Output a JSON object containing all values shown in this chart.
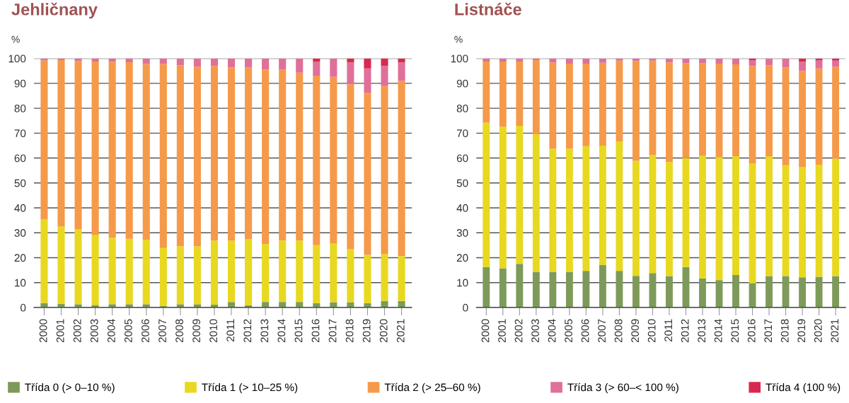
{
  "chart_data": [
    {
      "type": "bar",
      "title": "Jehličnany",
      "ylabel": "%",
      "stacked": true,
      "grid": "y",
      "legend": "bottom",
      "ylim": [
        0,
        100
      ],
      "yticks": [
        0,
        10,
        20,
        30,
        40,
        50,
        60,
        70,
        80,
        90,
        100
      ],
      "categories": [
        "2000",
        "2001",
        "2002",
        "2003",
        "2004",
        "2005",
        "2006",
        "2007",
        "2008",
        "2009",
        "2010",
        "2011",
        "2012",
        "2013",
        "2014",
        "2015",
        "2016",
        "2017",
        "2018",
        "2019",
        "2020",
        "2021"
      ],
      "series": [
        {
          "name": "Třída 0 (> 0–10 %)",
          "color": "#7d9a5a",
          "values": [
            1.8,
            1.5,
            1.3,
            1.0,
            1.3,
            1.3,
            1.3,
            0.6,
            1.3,
            1.3,
            1.1,
            2.2,
            0.9,
            2.2,
            2.2,
            2.2,
            1.7,
            2.1,
            2.1,
            1.7,
            2.6,
            2.6
          ]
        },
        {
          "name": "Třída 1 (> 10–25 %)",
          "color": "#e8d820",
          "values": [
            33.5,
            31.0,
            30.2,
            28.2,
            26.7,
            26.3,
            25.9,
            23.3,
            23.3,
            23.2,
            25.8,
            24.7,
            26.5,
            23.3,
            24.7,
            24.7,
            23.3,
            23.6,
            21.3,
            19.4,
            18.9,
            18.0
          ]
        },
        {
          "name": "Třída 2 (> 25–60 %)",
          "color": "#f59a4a",
          "values": [
            63.9,
            66.8,
            67.5,
            69.6,
            70.6,
            70.9,
            70.6,
            73.9,
            72.7,
            72.2,
            70.1,
            69.5,
            69.0,
            70.0,
            68.7,
            67.4,
            68.1,
            66.9,
            66.2,
            65.1,
            67.4,
            70.4
          ]
        },
        {
          "name": "Třída 3 (> 60–< 100 %)",
          "color": "#e07099",
          "values": [
            0.8,
            0.7,
            1.0,
            1.2,
            1.4,
            1.5,
            2.2,
            2.2,
            2.7,
            3.3,
            3.0,
            3.6,
            3.6,
            4.5,
            4.4,
            5.7,
            5.7,
            7.4,
            8.8,
            9.8,
            8.1,
            7.4
          ]
        },
        {
          "name": "Třída 4 (100 %)",
          "color": "#d9294f",
          "values": [
            0,
            0,
            0,
            0,
            0,
            0,
            0,
            0,
            0,
            0,
            0,
            0,
            0,
            0,
            0,
            0,
            1.2,
            0,
            1.6,
            4.0,
            3.0,
            1.6
          ]
        }
      ]
    },
    {
      "type": "bar",
      "title": "Listnáče",
      "ylabel": "%",
      "stacked": true,
      "grid": "y",
      "ylim": [
        0,
        100
      ],
      "yticks": [
        0,
        10,
        20,
        30,
        40,
        50,
        60,
        70,
        80,
        90,
        100
      ],
      "categories": [
        "2000",
        "2001",
        "2002",
        "2003",
        "2004",
        "2005",
        "2006",
        "2007",
        "2008",
        "2009",
        "2010",
        "2011",
        "2012",
        "2013",
        "2014",
        "2015",
        "2016",
        "2017",
        "2018",
        "2019",
        "2020",
        "2021"
      ],
      "series": [
        {
          "color": "#7d9a5a",
          "values": [
            16.2,
            15.7,
            17.5,
            14.3,
            14.3,
            14.3,
            14.7,
            17.0,
            14.7,
            12.7,
            13.8,
            12.6,
            16.2,
            11.7,
            11.0,
            13.0,
            9.7,
            12.6,
            12.6,
            12.1,
            12.3,
            12.6
          ]
        },
        {
          "color": "#e8d820",
          "values": [
            58.0,
            56.9,
            55.4,
            55.2,
            49.5,
            49.5,
            50.1,
            48.0,
            52.0,
            46.2,
            47.4,
            45.8,
            43.8,
            49.3,
            49.3,
            47.7,
            48.2,
            48.1,
            44.5,
            44.4,
            45.0,
            47.1
          ]
        },
        {
          "color": "#f59a4a",
          "values": [
            24.6,
            26.2,
            25.9,
            29.8,
            34.6,
            34.1,
            33.1,
            33.3,
            32.4,
            40.0,
            37.9,
            40.0,
            38.1,
            37.1,
            37.6,
            36.9,
            39.1,
            36.5,
            39.3,
            38.5,
            38.7,
            37.0
          ]
        },
        {
          "color": "#e07099",
          "values": [
            1.2,
            1.2,
            1.2,
            0.7,
            1.6,
            2.1,
            2.1,
            1.7,
            0.9,
            1.1,
            0.9,
            1.6,
            1.9,
            1.9,
            2.1,
            2.4,
            2.2,
            2.8,
            3.6,
            3.8,
            3.3,
            2.4
          ]
        },
        {
          "color": "#d9294f",
          "values": [
            0,
            0,
            0,
            0,
            0,
            0,
            0,
            0,
            0,
            0,
            0,
            0,
            0,
            0,
            0,
            0,
            0.8,
            0,
            0,
            1.2,
            0.7,
            0.9
          ]
        }
      ]
    }
  ]
}
